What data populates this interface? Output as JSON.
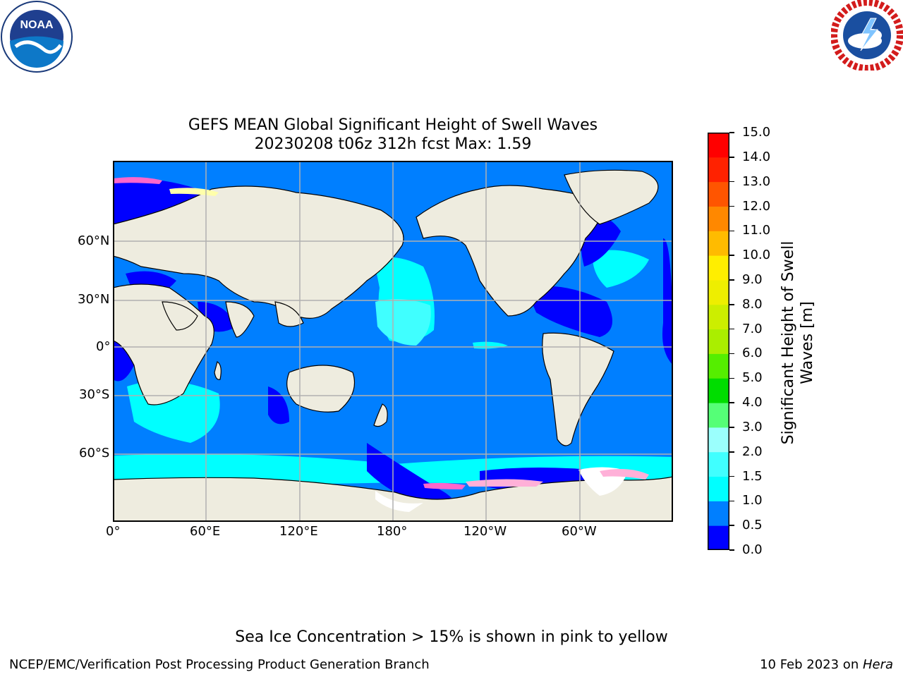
{
  "title": {
    "line1": "GEFS MEAN Global Significant Height of Swell Waves",
    "line2": "20230208 t06z 312h fcst   Max: 1.59"
  },
  "map": {
    "projection": "plate-carree, centered 180°",
    "x_ticks": [
      "0°",
      "60°E",
      "120°E",
      "180°",
      "120°W",
      "60°W"
    ],
    "y_ticks": [
      "60°N",
      "30°N",
      "0°",
      "30°S",
      "60°S"
    ],
    "ocean_colors": {
      "low": "#0000ff",
      "main": "#007fff",
      "high": "#00ffff",
      "higher": "#40ffff"
    },
    "land_color": "#eeecdf",
    "ice_colors": [
      "#ff66cc",
      "#ffb0d8",
      "#ffffaa",
      "#ffffff"
    ],
    "grid": true
  },
  "colorbar": {
    "label_line1": "Significant Height of Swell",
    "label_line2": "Waves [m]",
    "ticks": [
      "0.0",
      "0.5",
      "1.0",
      "1.5",
      "2.0",
      "3.0",
      "4.0",
      "5.0",
      "6.0",
      "7.0",
      "8.0",
      "9.0",
      "10.0",
      "11.0",
      "12.0",
      "13.0",
      "14.0",
      "15.0"
    ],
    "colors": [
      "#0000ff",
      "#007fff",
      "#00ffff",
      "#40ffff",
      "#9bfffd",
      "#55ff77",
      "#00dd00",
      "#55ee00",
      "#aaee00",
      "#ccee00",
      "#eeee00",
      "#ffee00",
      "#ffbb00",
      "#ff8800",
      "#ff5500",
      "#ff2200",
      "#ff0000"
    ]
  },
  "note": "Sea Ice Concentration > 15% is shown in pink to yellow",
  "footer": {
    "left": "NCEP/EMC/Verification Post Processing Product Generation Branch",
    "right_date": "10 Feb 2023 on ",
    "right_machine": "Hera"
  },
  "logos": {
    "left": "NOAA",
    "right": "NATIONAL WEATHER SERVICE"
  }
}
